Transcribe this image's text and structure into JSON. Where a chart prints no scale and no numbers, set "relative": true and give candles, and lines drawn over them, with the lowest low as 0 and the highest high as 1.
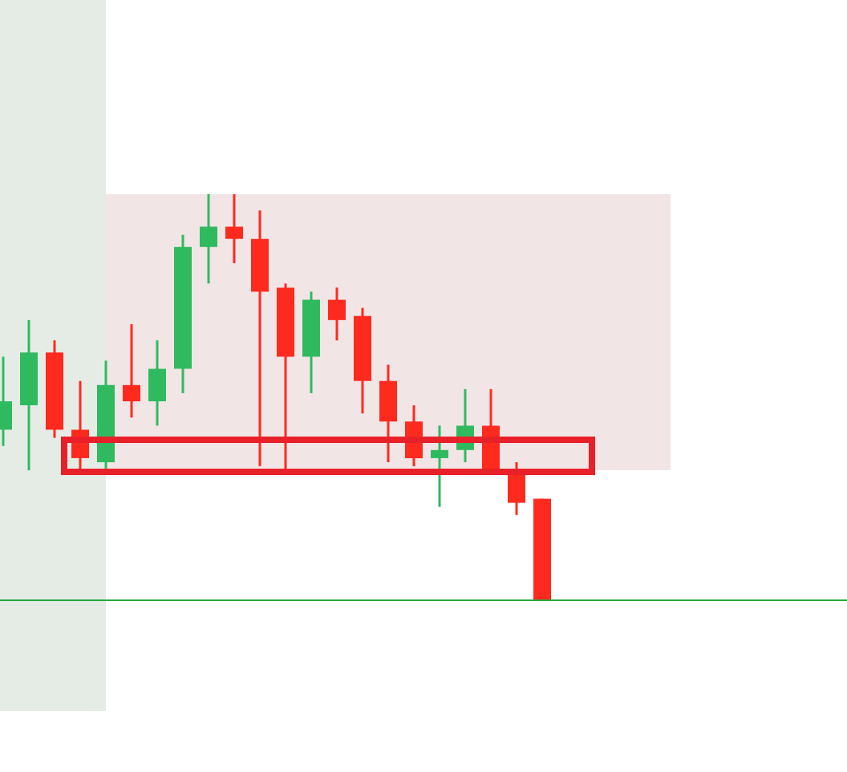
{
  "chart_data": {
    "type": "candlestick",
    "relative": true,
    "categories": [
      null,
      null,
      null,
      null,
      null,
      null,
      null,
      null,
      null,
      null,
      null,
      null,
      null,
      null,
      null,
      null,
      null,
      null,
      null,
      null,
      null,
      null
    ],
    "ohlc": [
      [
        0.42,
        0.6,
        0.38,
        0.49
      ],
      [
        0.48,
        0.69,
        0.32,
        0.61
      ],
      [
        0.61,
        0.64,
        0.4,
        0.42
      ],
      [
        0.42,
        0.54,
        0.32,
        0.35
      ],
      [
        0.34,
        0.59,
        0.32,
        0.53
      ],
      [
        0.53,
        0.68,
        0.45,
        0.49
      ],
      [
        0.49,
        0.64,
        0.43,
        0.57
      ],
      [
        0.57,
        0.9,
        0.51,
        0.87
      ],
      [
        0.87,
        1,
        0.78,
        0.92
      ],
      [
        0.92,
        1,
        0.83,
        0.89
      ],
      [
        0.89,
        0.96,
        0.33,
        0.76
      ],
      [
        0.77,
        0.78,
        0.32,
        0.6
      ],
      [
        0.6,
        0.76,
        0.51,
        0.74
      ],
      [
        0.74,
        0.77,
        0.64,
        0.69
      ],
      [
        0.7,
        0.72,
        0.46,
        0.54
      ],
      [
        0.54,
        0.58,
        0.34,
        0.44
      ],
      [
        0.44,
        0.48,
        0.33,
        0.35
      ],
      [
        0.35,
        0.43,
        0.23,
        0.37
      ],
      [
        0.37,
        0.52,
        0.34,
        0.43
      ],
      [
        0.43,
        0.52,
        0.32,
        0.32
      ],
      [
        0.31,
        0.34,
        0.21,
        0.24
      ],
      [
        0.25,
        0.25,
        0,
        0
      ]
    ],
    "colors": [
      "#2fba5f",
      "#2fba5f",
      "#ff2a1e",
      "#ff2a1e",
      "#2fba5f",
      "#ff2a1e",
      "#2fba5f",
      "#2fba5f",
      "#2fba5f",
      "#ff2a1e",
      "#ff2a1e",
      "#ff2a1e",
      "#2fba5f",
      "#ff2a1e",
      "#ff2a1e",
      "#ff2a1e",
      "#ff2a1e",
      "#2fba5f",
      "#2fba5f",
      "#ff2a1e",
      "#ff2a1e",
      "#ff2a1e"
    ],
    "ref_lines": [
      {
        "axis": "y",
        "value": 0,
        "color": "#27a844"
      }
    ]
  }
}
